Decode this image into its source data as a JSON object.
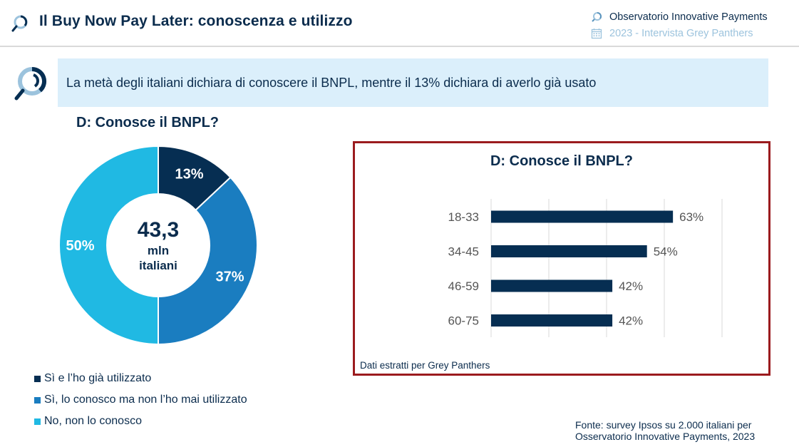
{
  "header": {
    "title": "Il Buy Now Pay Later: conoscenza e utilizzo",
    "title_icon": "magnifier-icon",
    "meta": [
      {
        "icon": "magnifier-icon",
        "text": "Observatorio Innovative Payments"
      },
      {
        "icon": "calendar-icon",
        "text": "2023 - Intervista Grey Panthers"
      }
    ]
  },
  "callout": {
    "icon": "magnifier-icon",
    "text": "La metà degli italiani dichiara di conoscere il BNPL, mentre il 13% dichiara di averlo già usato"
  },
  "colors": {
    "navy": "#062e52",
    "mid_blue": "#1a7dc0",
    "light_blue": "#20b9e3",
    "callout_bg": "#dbeffb",
    "frame_red": "#9b1b1e",
    "text": "#0b2c4d"
  },
  "chart_data": [
    {
      "type": "pie",
      "variant": "donut",
      "title": "D: Conosce il BNPL?",
      "center_label": {
        "value": "43,3",
        "line2": "mln",
        "line3": "italiani"
      },
      "categories": [
        "Sì e l'ho già utilizzato",
        "Sì, lo conosco ma non l'ho mai utilizzato",
        "No, non lo conosco"
      ],
      "values": [
        13,
        37,
        50
      ],
      "labels": [
        "13%",
        "37%",
        "50%"
      ],
      "colors": [
        "#062e52",
        "#1a7dc0",
        "#20b9e3"
      ],
      "legend": "bottom-left"
    },
    {
      "type": "bar",
      "orientation": "horizontal",
      "title": "D: Conosce il BNPL?",
      "categories": [
        "18-33",
        "34-45",
        "46-59",
        "60-75"
      ],
      "values": [
        63,
        54,
        42,
        42
      ],
      "labels": [
        "63%",
        "54%",
        "42%",
        "42%"
      ],
      "xlim": [
        0,
        100
      ],
      "grid": true,
      "grid_step": 20,
      "color": "#062e52",
      "note": "Dati estratti per Grey Panthers"
    }
  ],
  "legend": [
    {
      "label": "Sì e l’ho già utilizzato",
      "color": "#062e52"
    },
    {
      "label": "Sì, lo conosco ma non l’ho mai utilizzato",
      "color": "#1a7dc0"
    },
    {
      "label": "No, non lo conosco",
      "color": "#20b9e3"
    }
  ],
  "source": {
    "line1": "Fonte: survey Ipsos su 2.000 italiani per",
    "line2": "Osservatorio Innovative Payments, 2023"
  }
}
